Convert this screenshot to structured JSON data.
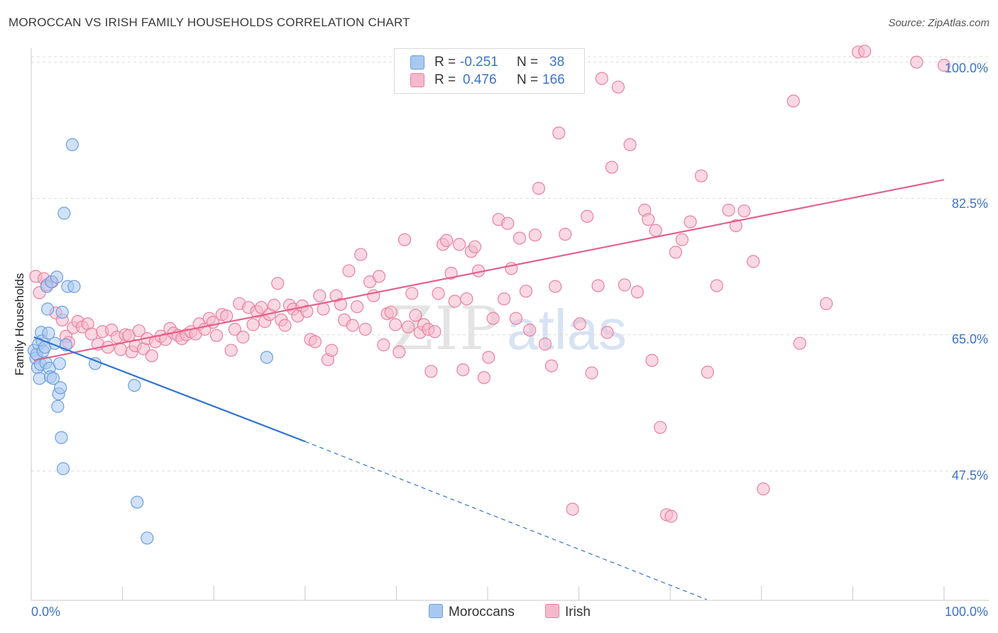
{
  "header": {
    "title": "MOROCCAN VS IRISH FAMILY HOUSEHOLDS CORRELATION CHART",
    "source": "Source: ZipAtlas.com"
  },
  "watermark": {
    "zip": "ZIP",
    "atlas": "atlas"
  },
  "colors": {
    "blue_fill": "#a9c8f0",
    "blue_stroke": "#6a9fdd",
    "blue_line": "#2f74d0",
    "pink_fill": "#f6b8cc",
    "pink_stroke": "#e8819f",
    "pink_line": "#e3618c",
    "tick_text": "#3b73c8",
    "grid": "#dcdcdc"
  },
  "legend": {
    "blue": {
      "r_label": "R =",
      "r_value": "-0.251",
      "n_label": "N =",
      "n_value": "38"
    },
    "pink": {
      "r_label": "R =",
      "r_value": "0.476",
      "n_label": "N =",
      "n_value": "166"
    }
  },
  "series_labels": {
    "blue": "Moroccans",
    "pink": "Irish"
  },
  "chart_data": {
    "type": "scatter",
    "title": "MOROCCAN VS IRISH FAMILY HOUSEHOLDS CORRELATION CHART",
    "xlabel": "",
    "ylabel": "Family Households",
    "xlim": [
      0,
      100
    ],
    "ylim": [
      30.9,
      101.6
    ],
    "x_tick_labels": [
      "0.0%",
      "100.0%"
    ],
    "y_ticks": [
      {
        "value": 100.0,
        "label": "100.0%"
      },
      {
        "value": 82.5,
        "label": "82.5%"
      },
      {
        "value": 65.0,
        "label": "65.0%"
      },
      {
        "value": 47.5,
        "label": "47.5%"
      }
    ],
    "series": [
      {
        "name": "Moroccans",
        "color": "#a9c8f0",
        "trend": {
          "x_start": 0.3,
          "y_start": 64.7,
          "x_solid_end": 30,
          "y_solid_end": 51.3,
          "x_dash_end": 74,
          "y_dash_end": 31.0
        },
        "points": [
          [
            0.3,
            63.0
          ],
          [
            0.5,
            62.0
          ],
          [
            0.6,
            62.5
          ],
          [
            0.7,
            60.8
          ],
          [
            0.8,
            63.8
          ],
          [
            0.9,
            59.4
          ],
          [
            1.0,
            61.2
          ],
          [
            1.1,
            65.3
          ],
          [
            1.2,
            64.2
          ],
          [
            1.3,
            62.9
          ],
          [
            1.5,
            63.4
          ],
          [
            1.6,
            61.4
          ],
          [
            1.7,
            71.2
          ],
          [
            1.8,
            68.3
          ],
          [
            1.9,
            65.2
          ],
          [
            2.0,
            60.7
          ],
          [
            2.1,
            59.6
          ],
          [
            2.2,
            71.8
          ],
          [
            2.4,
            59.4
          ],
          [
            2.6,
            63.9
          ],
          [
            2.8,
            72.4
          ],
          [
            2.9,
            55.8
          ],
          [
            3.0,
            57.4
          ],
          [
            3.1,
            61.3
          ],
          [
            3.2,
            58.2
          ],
          [
            3.3,
            51.8
          ],
          [
            3.4,
            67.9
          ],
          [
            3.5,
            47.8
          ],
          [
            3.6,
            80.6
          ],
          [
            3.8,
            63.7
          ],
          [
            4.0,
            71.2
          ],
          [
            4.5,
            89.4
          ],
          [
            4.7,
            71.2
          ],
          [
            7.0,
            61.3
          ],
          [
            11.3,
            58.5
          ],
          [
            11.6,
            43.5
          ],
          [
            12.7,
            38.9
          ],
          [
            25.8,
            62.1
          ]
        ]
      },
      {
        "name": "Irish",
        "color": "#f6b8cc",
        "trend": {
          "x_start": 0.3,
          "y_start": 61.7,
          "x_end": 100,
          "y_end": 84.9
        },
        "points": [
          [
            0.5,
            72.5
          ],
          [
            0.9,
            70.4
          ],
          [
            1.4,
            72.2
          ],
          [
            1.7,
            71.4
          ],
          [
            2.3,
            71.8
          ],
          [
            2.7,
            67.8
          ],
          [
            3.4,
            66.9
          ],
          [
            3.8,
            64.8
          ],
          [
            4.1,
            64.0
          ],
          [
            4.6,
            65.9
          ],
          [
            5.1,
            66.7
          ],
          [
            5.6,
            66.0
          ],
          [
            6.2,
            66.4
          ],
          [
            6.6,
            65.1
          ],
          [
            7.3,
            63.8
          ],
          [
            7.8,
            65.4
          ],
          [
            8.4,
            63.4
          ],
          [
            8.8,
            65.6
          ],
          [
            9.4,
            64.7
          ],
          [
            9.8,
            63.1
          ],
          [
            10.3,
            65.0
          ],
          [
            10.7,
            64.9
          ],
          [
            11.0,
            62.8
          ],
          [
            11.4,
            63.6
          ],
          [
            11.8,
            65.5
          ],
          [
            12.3,
            63.2
          ],
          [
            12.7,
            64.5
          ],
          [
            13.2,
            62.3
          ],
          [
            13.6,
            64.1
          ],
          [
            14.2,
            64.8
          ],
          [
            14.7,
            64.4
          ],
          [
            15.2,
            65.8
          ],
          [
            15.6,
            65.2
          ],
          [
            16.1,
            64.9
          ],
          [
            16.5,
            64.5
          ],
          [
            17.0,
            65.0
          ],
          [
            17.5,
            65.4
          ],
          [
            18.0,
            65.1
          ],
          [
            18.4,
            66.4
          ],
          [
            19.0,
            65.7
          ],
          [
            19.5,
            67.1
          ],
          [
            19.9,
            66.6
          ],
          [
            20.3,
            64.9
          ],
          [
            20.9,
            67.6
          ],
          [
            21.4,
            67.4
          ],
          [
            21.9,
            63.0
          ],
          [
            22.3,
            65.7
          ],
          [
            22.8,
            69.0
          ],
          [
            23.2,
            64.7
          ],
          [
            23.8,
            68.5
          ],
          [
            24.3,
            66.3
          ],
          [
            24.7,
            68.0
          ],
          [
            25.2,
            68.5
          ],
          [
            25.6,
            66.7
          ],
          [
            26.1,
            67.6
          ],
          [
            26.6,
            68.8
          ],
          [
            27.0,
            71.6
          ],
          [
            27.4,
            66.9
          ],
          [
            27.8,
            66.2
          ],
          [
            28.3,
            68.8
          ],
          [
            28.7,
            68.3
          ],
          [
            29.2,
            67.4
          ],
          [
            29.7,
            68.7
          ],
          [
            30.2,
            68.0
          ],
          [
            30.6,
            64.4
          ],
          [
            31.1,
            64.1
          ],
          [
            31.6,
            70.0
          ],
          [
            32.0,
            68.3
          ],
          [
            32.5,
            61.8
          ],
          [
            32.9,
            63.0
          ],
          [
            33.4,
            70.0
          ],
          [
            33.9,
            68.9
          ],
          [
            34.3,
            66.9
          ],
          [
            34.8,
            73.2
          ],
          [
            35.2,
            66.2
          ],
          [
            35.7,
            68.6
          ],
          [
            36.1,
            75.3
          ],
          [
            36.6,
            65.7
          ],
          [
            37.1,
            71.8
          ],
          [
            37.5,
            70.0
          ],
          [
            38.1,
            72.5
          ],
          [
            38.6,
            63.7
          ],
          [
            39.0,
            67.7
          ],
          [
            39.4,
            67.9
          ],
          [
            39.9,
            66.3
          ],
          [
            40.3,
            62.8
          ],
          [
            40.9,
            77.2
          ],
          [
            41.3,
            66.0
          ],
          [
            41.7,
            70.3
          ],
          [
            42.1,
            67.5
          ],
          [
            42.6,
            65.3
          ],
          [
            43.0,
            66.3
          ],
          [
            43.5,
            65.7
          ],
          [
            43.8,
            60.3
          ],
          [
            44.2,
            65.4
          ],
          [
            44.6,
            70.3
          ],
          [
            45.1,
            76.6
          ],
          [
            45.5,
            77.1
          ],
          [
            46.0,
            72.9
          ],
          [
            46.4,
            69.3
          ],
          [
            46.9,
            76.6
          ],
          [
            47.3,
            60.5
          ],
          [
            47.7,
            69.6
          ],
          [
            48.2,
            75.7
          ],
          [
            48.6,
            76.3
          ],
          [
            49.0,
            73.2
          ],
          [
            49.6,
            59.5
          ],
          [
            50.1,
            62.1
          ],
          [
            50.6,
            67.1
          ],
          [
            51.2,
            79.8
          ],
          [
            51.8,
            69.6
          ],
          [
            52.2,
            79.3
          ],
          [
            52.6,
            73.5
          ],
          [
            53.1,
            67.1
          ],
          [
            53.5,
            77.4
          ],
          [
            54.2,
            70.6
          ],
          [
            54.6,
            65.6
          ],
          [
            55.2,
            77.8
          ],
          [
            55.6,
            83.8
          ],
          [
            56.3,
            63.8
          ],
          [
            57.0,
            61.0
          ],
          [
            57.4,
            71.2
          ],
          [
            57.8,
            90.9
          ],
          [
            58.5,
            77.9
          ],
          [
            59.3,
            42.6
          ],
          [
            60.1,
            66.4
          ],
          [
            60.9,
            80.2
          ],
          [
            61.4,
            60.1
          ],
          [
            62.1,
            71.3
          ],
          [
            62.5,
            97.9
          ],
          [
            63.1,
            65.3
          ],
          [
            63.6,
            86.5
          ],
          [
            64.3,
            96.8
          ],
          [
            65.0,
            71.4
          ],
          [
            65.6,
            89.4
          ],
          [
            66.4,
            70.5
          ],
          [
            67.2,
            81.0
          ],
          [
            67.6,
            79.8
          ],
          [
            68.0,
            61.7
          ],
          [
            68.4,
            78.4
          ],
          [
            68.9,
            53.1
          ],
          [
            69.6,
            41.9
          ],
          [
            70.1,
            41.7
          ],
          [
            70.6,
            75.6
          ],
          [
            71.3,
            77.2
          ],
          [
            72.2,
            79.5
          ],
          [
            73.4,
            85.4
          ],
          [
            74.1,
            60.2
          ],
          [
            75.1,
            71.3
          ],
          [
            76.4,
            81.0
          ],
          [
            77.2,
            79.0
          ],
          [
            78.1,
            80.9
          ],
          [
            79.1,
            74.4
          ],
          [
            80.2,
            45.2
          ],
          [
            83.5,
            95.0
          ],
          [
            84.2,
            63.9
          ],
          [
            87.1,
            69.0
          ],
          [
            90.6,
            101.3
          ],
          [
            91.3,
            101.4
          ],
          [
            97.0,
            100.0
          ],
          [
            100.0,
            99.6
          ]
        ]
      }
    ]
  }
}
